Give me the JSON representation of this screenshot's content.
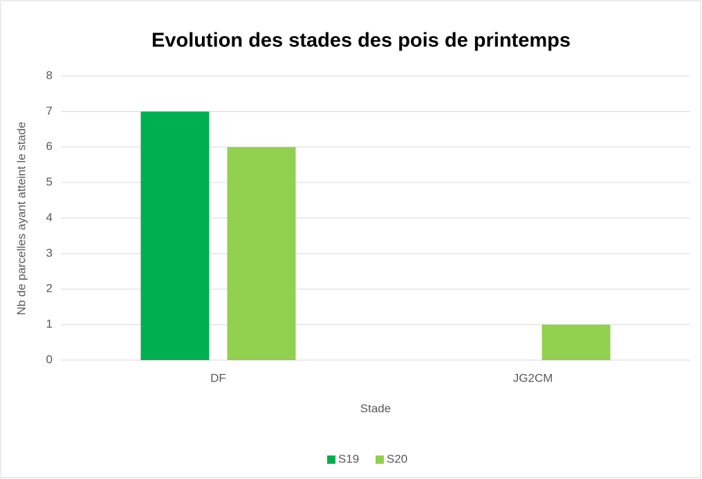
{
  "chart_data": {
    "type": "bar",
    "title": "Evolution des stades des pois de printemps",
    "x_label": "Stade",
    "y_label": "Nb de parcelles ayant atteint le stade",
    "categories": [
      "DF",
      "JG2CM"
    ],
    "series": [
      {
        "name": "S19",
        "color": "#00b050",
        "values": [
          7,
          0
        ]
      },
      {
        "name": "S20",
        "color": "#92d050",
        "values": [
          6,
          1
        ]
      }
    ],
    "ylim": [
      0,
      8
    ],
    "yticks": [
      0,
      1,
      2,
      3,
      4,
      5,
      6,
      7,
      8
    ],
    "grid": true,
    "legend": "bottom"
  }
}
